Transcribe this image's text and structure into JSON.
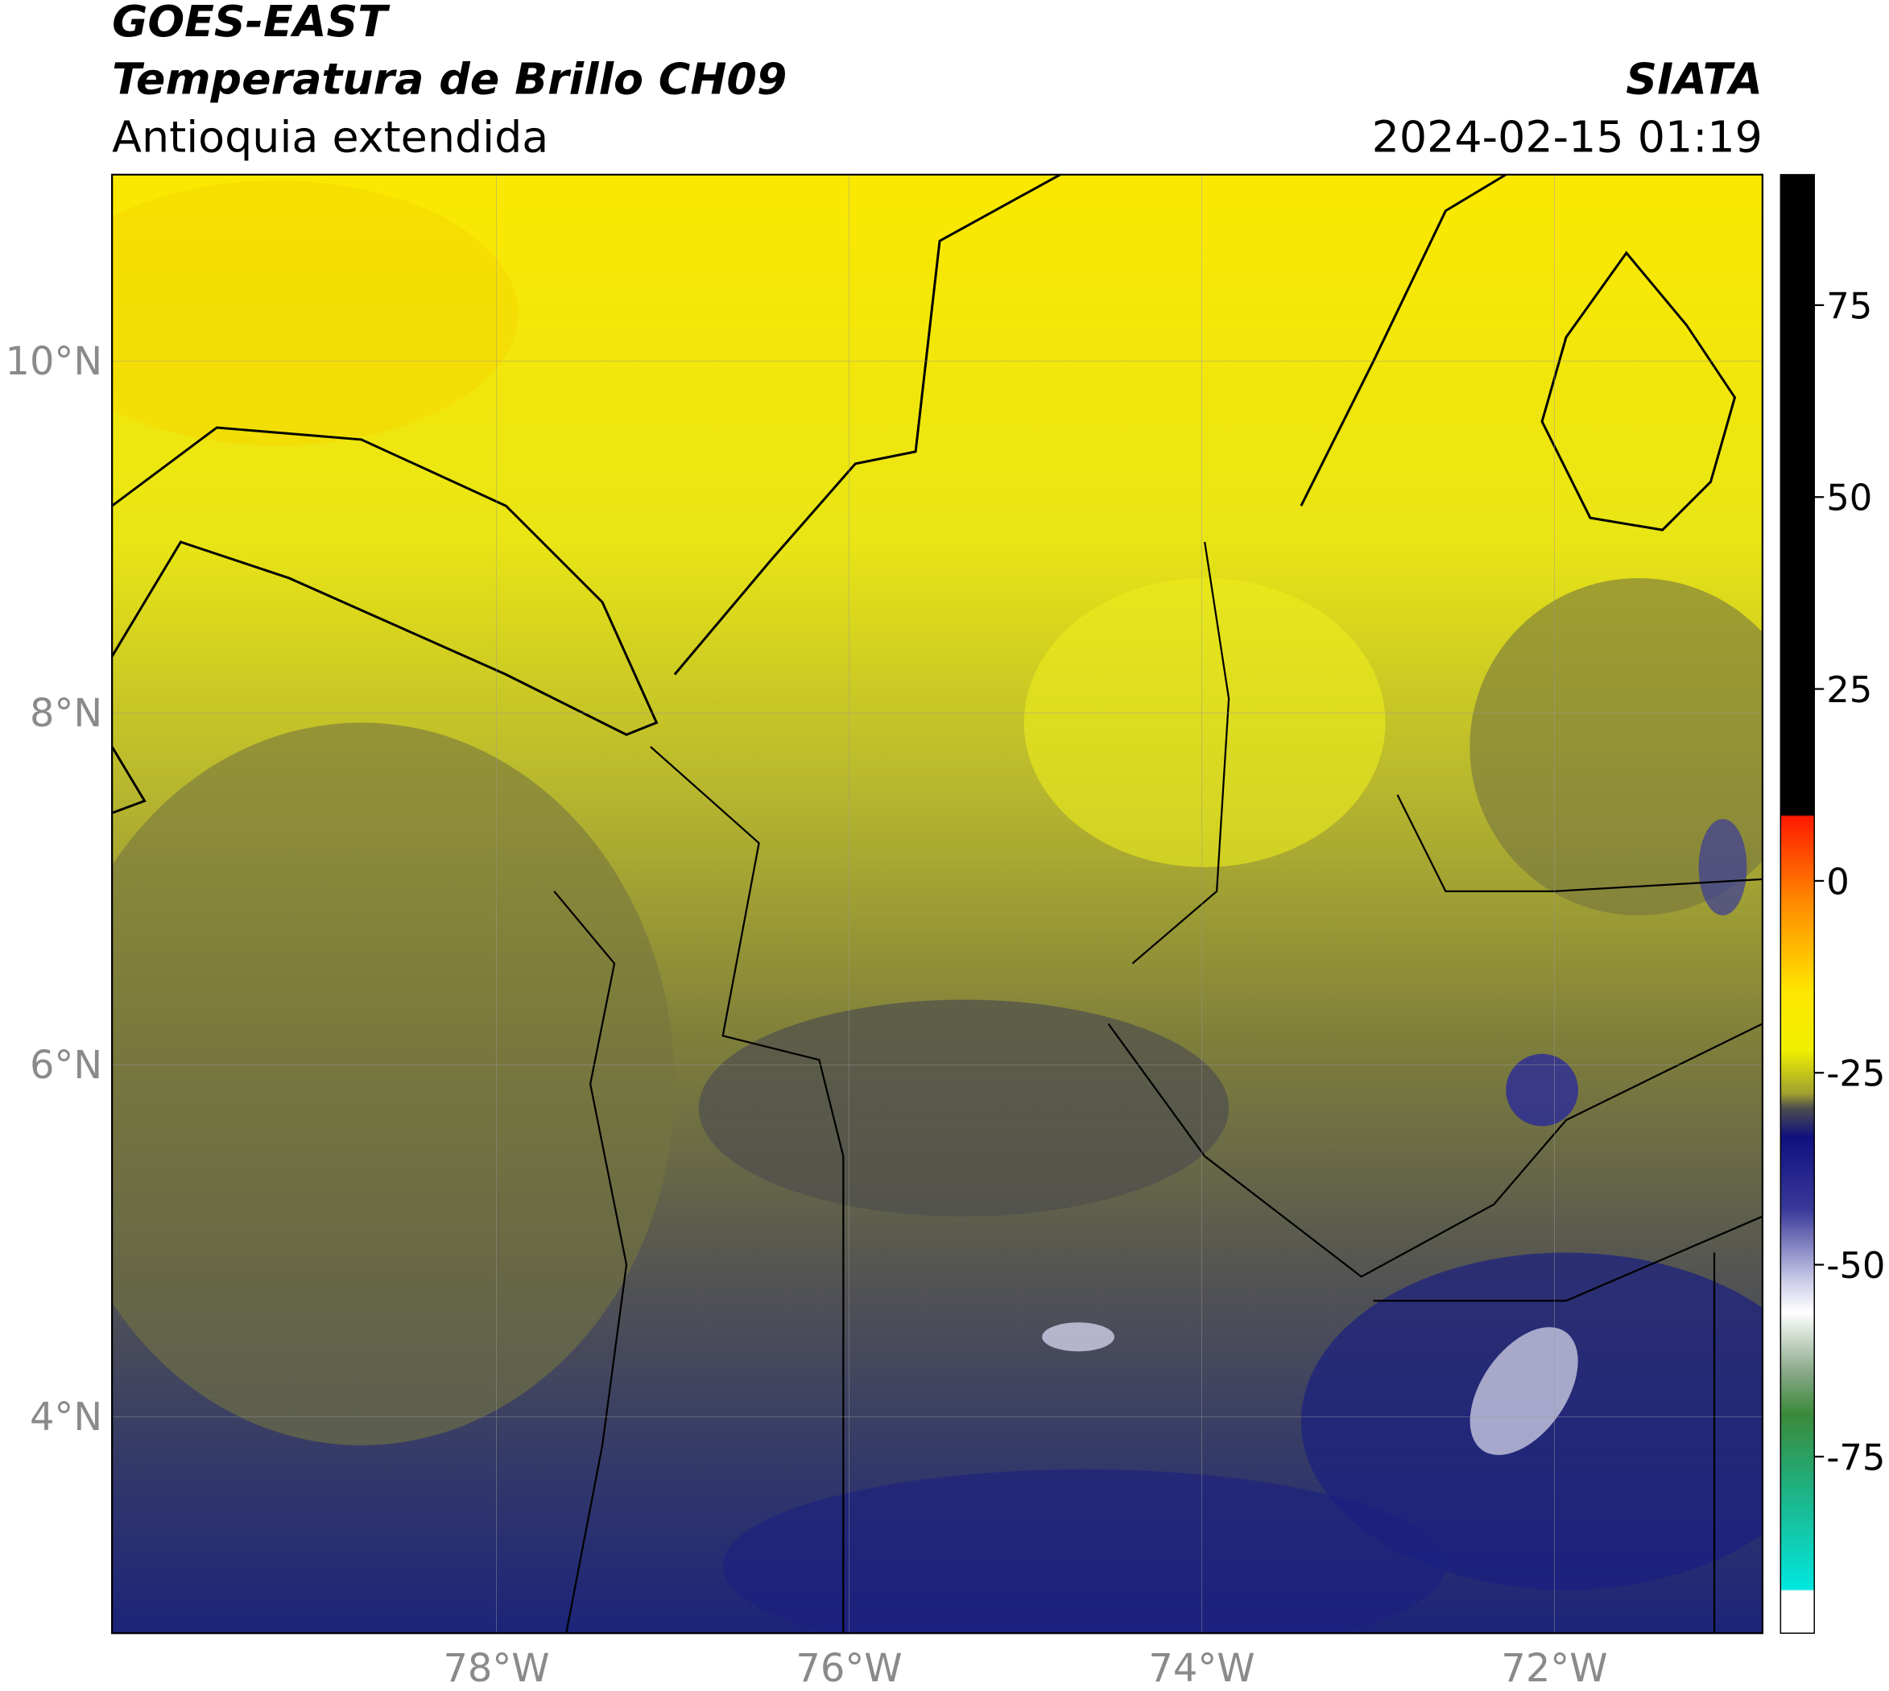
{
  "header": {
    "satellite": "GOES-EAST",
    "product": "Temperatura de Brillo CH09",
    "region": "Antioquia extendida",
    "agency": "SIATA",
    "datetime": "2024-02-15 01:19"
  },
  "map": {
    "xlim": [
      -80.18,
      -70.82
    ],
    "ylim": [
      2.77,
      11.06
    ],
    "xticks": [
      {
        "value": -78,
        "label": "78°W"
      },
      {
        "value": -76,
        "label": "76°W"
      },
      {
        "value": -74,
        "label": "74°W"
      },
      {
        "value": -72,
        "label": "72°W"
      }
    ],
    "yticks": [
      {
        "value": 10,
        "label": "10°N"
      },
      {
        "value": 8,
        "label": "8°N"
      },
      {
        "value": 6,
        "label": "6°N"
      },
      {
        "value": 4,
        "label": "4°N"
      }
    ]
  },
  "colorbar": {
    "lim": [
      -98,
      92
    ],
    "ticks": [
      75,
      50,
      25,
      0,
      -25,
      -50,
      -75
    ]
  }
}
